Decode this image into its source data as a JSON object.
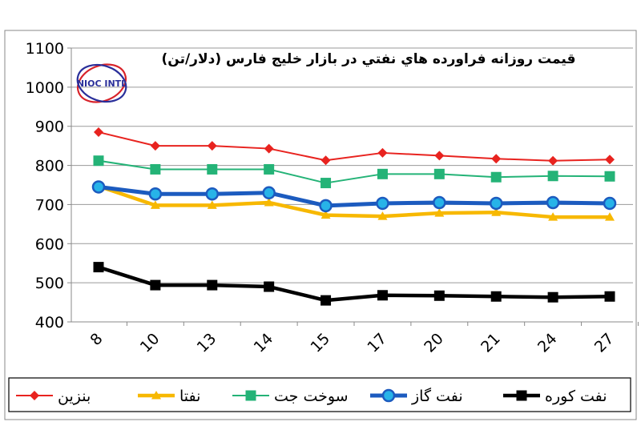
{
  "chart_data": {
    "type": "line",
    "title": "قیمت روزانه فراورده هاي نفتي در بازار خليج فارس (دلار/تن)",
    "xlabel": "",
    "ylabel": "",
    "categories": [
      "8",
      "10",
      "13",
      "14",
      "15",
      "17",
      "20",
      "21",
      "24",
      "27"
    ],
    "ylim": [
      400,
      1100
    ],
    "yticks": [
      "400",
      "500",
      "600",
      "700",
      "800",
      "900",
      "1000",
      "1100"
    ],
    "grid": true,
    "legend_position": "bottom",
    "series": [
      {
        "name": "بنزين",
        "color": "#e8231f",
        "marker": "diamond",
        "values": [
          885,
          850,
          850,
          843,
          813,
          832,
          825,
          817,
          812,
          815
        ]
      },
      {
        "name": "نفتا",
        "color": "#f7b800",
        "marker": "triangle",
        "values": [
          747,
          698,
          698,
          705,
          673,
          670,
          678,
          680,
          668,
          668
        ]
      },
      {
        "name": "سوخت جت",
        "color": "#24b377",
        "marker": "square",
        "values": [
          812,
          790,
          790,
          790,
          755,
          778,
          778,
          770,
          773,
          772
        ]
      },
      {
        "name": "نفت گاز",
        "color": "#1c5bbf",
        "marker": "circle",
        "values": [
          745,
          727,
          727,
          730,
          697,
          703,
          705,
          703,
          705,
          703
        ]
      },
      {
        "name": "نفت کوره",
        "color": "#000000",
        "marker": "square",
        "values": [
          540,
          494,
          494,
          490,
          455,
          468,
          467,
          465,
          463,
          465
        ]
      }
    ]
  },
  "logo": {
    "text": "NIOC INTL",
    "color": "#2a2f9a"
  }
}
